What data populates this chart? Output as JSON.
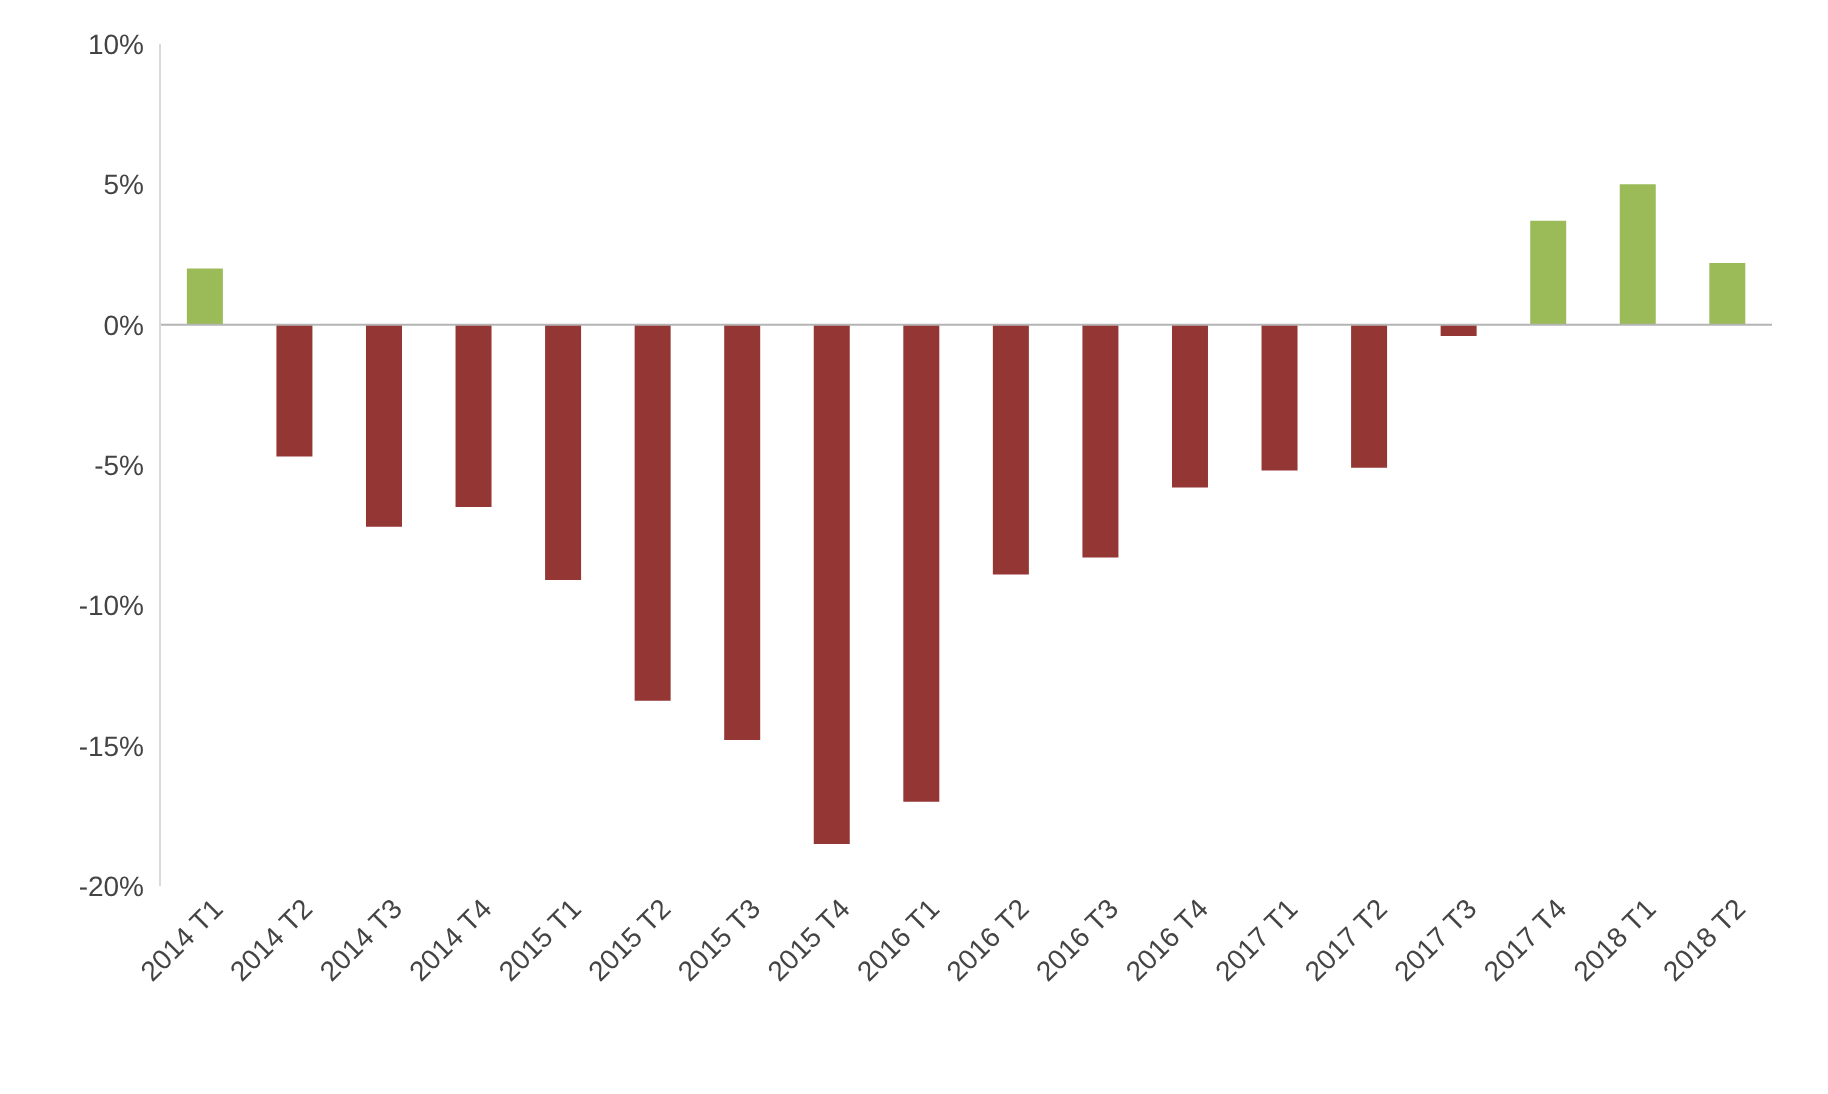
{
  "chart_data": {
    "type": "bar",
    "categories": [
      "2014 T1",
      "2014 T2",
      "2014 T3",
      "2014 T4",
      "2015 T1",
      "2015 T2",
      "2015 T3",
      "2015 T4",
      "2016 T1",
      "2016 T2",
      "2016 T3",
      "2016 T4",
      "2017 T1",
      "2017 T2",
      "2017 T3",
      "2017 T4",
      "2018 T1",
      "2018 T2"
    ],
    "values": [
      2.0,
      -4.7,
      -7.2,
      -6.5,
      -9.1,
      -13.4,
      -14.8,
      -18.5,
      -17.0,
      -8.9,
      -8.3,
      -5.8,
      -5.2,
      -5.1,
      -0.4,
      3.7,
      5.0,
      2.2
    ],
    "colors": [
      "#9bbb59",
      "#943634",
      "#943634",
      "#943634",
      "#943634",
      "#943634",
      "#943634",
      "#943634",
      "#943634",
      "#943634",
      "#943634",
      "#943634",
      "#943634",
      "#943634",
      "#943634",
      "#9bbb59",
      "#9bbb59",
      "#9bbb59"
    ],
    "ylim": [
      -20,
      10
    ],
    "yticks": [
      {
        "value": -20,
        "label": "-20%"
      },
      {
        "value": -15,
        "label": "-15%"
      },
      {
        "value": -10,
        "label": "-10%"
      },
      {
        "value": -5,
        "label": "-5%"
      },
      {
        "value": 0,
        "label": "0%"
      },
      {
        "value": 5,
        "label": "5%"
      },
      {
        "value": 10,
        "label": "10%"
      }
    ],
    "ref_lines": [
      {
        "axis": "y",
        "value": 0,
        "color": "#b4b4b4"
      }
    ],
    "grid": false
  }
}
